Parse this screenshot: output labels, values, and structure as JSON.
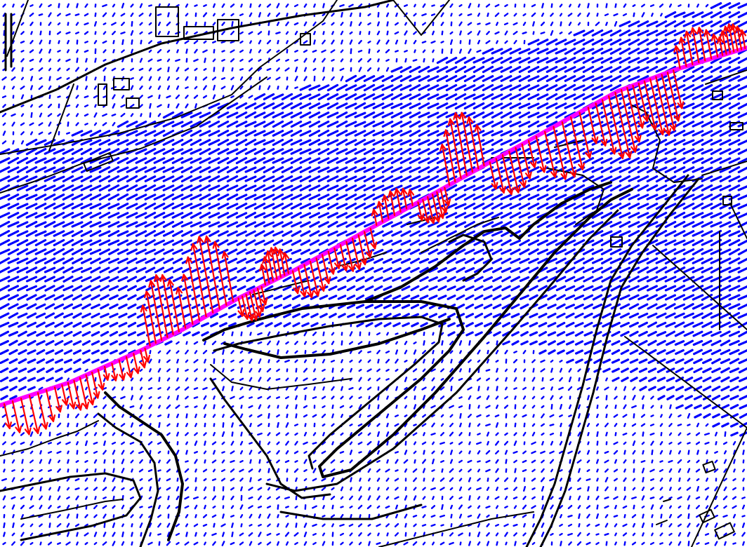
{
  "map": {
    "type": "flow-vector-map",
    "colors": {
      "background": "#ffffff",
      "linework": "#000000",
      "flow_vectors": "#0000ff",
      "cross_section_vectors": "#ff0000",
      "cross_section_line": "#ff00ff"
    },
    "features": [
      "river-channel-flow-vectors",
      "floodplain-flow-vectors",
      "cross-section-line",
      "cross-section-velocity-arrows",
      "meandering-channel-contours",
      "roads-and-parcels",
      "buildings"
    ]
  }
}
